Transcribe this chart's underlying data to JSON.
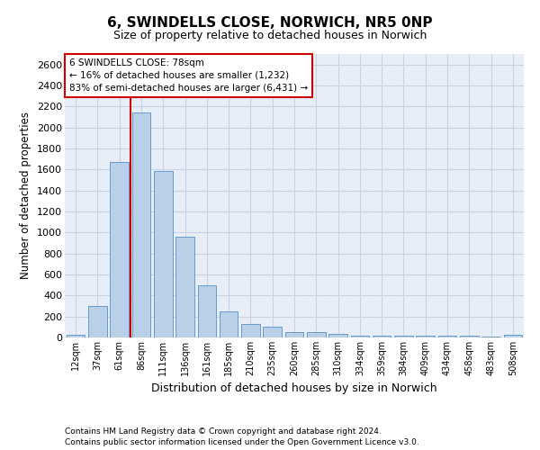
{
  "title1": "6, SWINDELLS CLOSE, NORWICH, NR5 0NP",
  "title2": "Size of property relative to detached houses in Norwich",
  "xlabel": "Distribution of detached houses by size in Norwich",
  "ylabel": "Number of detached properties",
  "categories": [
    "12sqm",
    "37sqm",
    "61sqm",
    "86sqm",
    "111sqm",
    "136sqm",
    "161sqm",
    "185sqm",
    "210sqm",
    "235sqm",
    "260sqm",
    "285sqm",
    "310sqm",
    "334sqm",
    "359sqm",
    "384sqm",
    "409sqm",
    "434sqm",
    "458sqm",
    "483sqm",
    "508sqm"
  ],
  "values": [
    25,
    300,
    1670,
    2140,
    1590,
    960,
    500,
    250,
    125,
    100,
    50,
    50,
    35,
    20,
    20,
    20,
    20,
    20,
    20,
    5,
    25
  ],
  "bar_color": "#b8d0e8",
  "bar_edge_color": "#6699cc",
  "bar_linewidth": 0.7,
  "marker_color": "#cc0000",
  "ylim": [
    0,
    2700
  ],
  "yticks": [
    0,
    200,
    400,
    600,
    800,
    1000,
    1200,
    1400,
    1600,
    1800,
    2000,
    2200,
    2400,
    2600
  ],
  "annotation_line1": "6 SWINDELLS CLOSE: 78sqm",
  "annotation_line2": "← 16% of detached houses are smaller (1,232)",
  "annotation_line3": "83% of semi-detached houses are larger (6,431) →",
  "annotation_box_color": "#cc0000",
  "grid_color": "#c8d4e4",
  "background_color": "#e8eef8",
  "footer1": "Contains HM Land Registry data © Crown copyright and database right 2024.",
  "footer2": "Contains public sector information licensed under the Open Government Licence v3.0."
}
